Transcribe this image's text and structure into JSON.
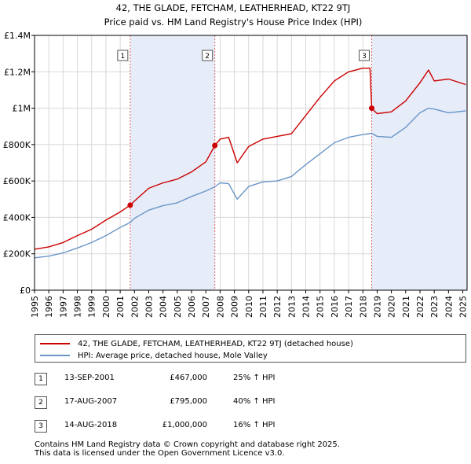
{
  "title": {
    "line1": "42, THE GLADE, FETCHAM, LEATHERHEAD, KT22 9TJ",
    "line2": "Price paid vs. HM Land Registry's House Price Index (HPI)"
  },
  "colors": {
    "property": "#cc0000",
    "hpi": "#6a96c8",
    "shade": "#e6ecf8",
    "vline": "#e06060",
    "grid": "#d8d8d8"
  },
  "legend": {
    "property_label": "42, THE GLADE, FETCHAM, LEATHERHEAD, KT22 9TJ (detached house)",
    "hpi_label": "HPI: Average price, detached house, Mole Valley"
  },
  "sales": [
    {
      "num": "1",
      "date": "13-SEP-2001",
      "price": "£467,000",
      "hpi": "25% ↑ HPI"
    },
    {
      "num": "2",
      "date": "17-AUG-2007",
      "price": "£795,000",
      "hpi": "40% ↑ HPI"
    },
    {
      "num": "3",
      "date": "14-AUG-2018",
      "price": "£1,000,000",
      "hpi": "16% ↑ HPI"
    }
  ],
  "footer": {
    "line1": "Contains HM Land Registry data © Crown copyright and database right 2025.",
    "line2": "This data is licensed under the Open Government Licence v3.0."
  },
  "chart_data": {
    "type": "line",
    "title": "42, THE GLADE, FETCHAM, LEATHERHEAD, KT22 9TJ",
    "subtitle": "Price paid vs. HM Land Registry's House Price Index (HPI)",
    "xlim": [
      1995,
      2025.3
    ],
    "ylim": [
      0,
      1400000
    ],
    "y_ticks": [
      {
        "value": 0,
        "label": "£0"
      },
      {
        "value": 200000,
        "label": "£200K"
      },
      {
        "value": 400000,
        "label": "£400K"
      },
      {
        "value": 600000,
        "label": "£600K"
      },
      {
        "value": 800000,
        "label": "£800K"
      },
      {
        "value": 1000000,
        "label": "£1M"
      },
      {
        "value": 1200000,
        "label": "£1.2M"
      },
      {
        "value": 1400000,
        "label": "£1.4M"
      }
    ],
    "x_ticks": [
      "1995",
      "1996",
      "1997",
      "1998",
      "1999",
      "2000",
      "2001",
      "2002",
      "2003",
      "2004",
      "2005",
      "2006",
      "2007",
      "2008",
      "2009",
      "2010",
      "2011",
      "2012",
      "2013",
      "2014",
      "2015",
      "2016",
      "2017",
      "2018",
      "2019",
      "2020",
      "2021",
      "2022",
      "2023",
      "2024",
      "2025"
    ],
    "grid": true,
    "legend_position": "below",
    "shaded_periods": [
      [
        2001.7,
        2007.63
      ],
      [
        2018.62,
        2025.3
      ]
    ],
    "sale_markers": [
      {
        "label": "1",
        "x": 2001.7,
        "y": 467000
      },
      {
        "label": "2",
        "x": 2007.63,
        "y": 795000
      },
      {
        "label": "3",
        "x": 2018.62,
        "y": 1000000
      }
    ],
    "series": [
      {
        "name": "42, THE GLADE, FETCHAM, LEATHERHEAD, KT22 9TJ (detached house)",
        "x": [
          1995,
          1996,
          1997,
          1998,
          1999,
          2000,
          2001,
          2001.7,
          2002,
          2003,
          2004,
          2005,
          2006,
          2007,
          2007.63,
          2008,
          2008.6,
          2009.2,
          2010,
          2011,
          2012,
          2013,
          2014,
          2015,
          2016,
          2017,
          2018,
          2018.5,
          2018.62,
          2019,
          2020,
          2021,
          2022,
          2022.6,
          2023,
          2024,
          2025.2
        ],
        "values": [
          225000,
          238000,
          262000,
          300000,
          335000,
          385000,
          430000,
          467000,
          490000,
          560000,
          590000,
          610000,
          650000,
          705000,
          795000,
          830000,
          840000,
          700000,
          790000,
          830000,
          845000,
          860000,
          960000,
          1060000,
          1150000,
          1200000,
          1220000,
          1220000,
          1000000,
          970000,
          980000,
          1040000,
          1140000,
          1210000,
          1150000,
          1160000,
          1130000
        ]
      },
      {
        "name": "HPI: Average price, detached house, Mole Valley",
        "x": [
          1995,
          1996,
          1997,
          1998,
          1999,
          2000,
          2001,
          2001.7,
          2002,
          2003,
          2004,
          2005,
          2006,
          2007,
          2007.63,
          2008,
          2008.6,
          2009.2,
          2010,
          2011,
          2012,
          2013,
          2014,
          2015,
          2016,
          2017,
          2018,
          2018.62,
          2019,
          2020,
          2021,
          2022,
          2022.6,
          2023,
          2024,
          2025.2
        ],
        "values": [
          178000,
          187000,
          205000,
          232000,
          262000,
          300000,
          345000,
          372000,
          395000,
          440000,
          465000,
          480000,
          515000,
          545000,
          568000,
          590000,
          585000,
          500000,
          570000,
          595000,
          600000,
          625000,
          690000,
          750000,
          810000,
          840000,
          855000,
          862000,
          845000,
          840000,
          895000,
          975000,
          1000000,
          995000,
          975000,
          985000
        ]
      }
    ]
  }
}
